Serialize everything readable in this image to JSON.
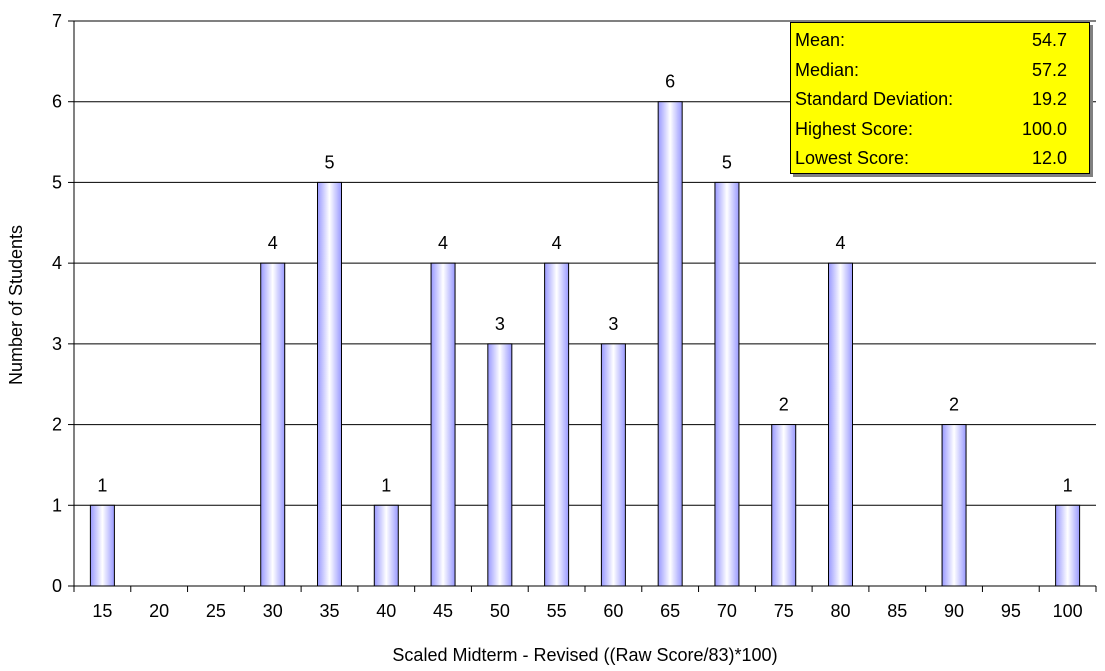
{
  "chart_data": {
    "type": "bar",
    "categories": [
      "15",
      "20",
      "25",
      "30",
      "35",
      "40",
      "45",
      "50",
      "55",
      "60",
      "65",
      "70",
      "75",
      "80",
      "85",
      "90",
      "95",
      "100"
    ],
    "values": [
      1,
      0,
      0,
      4,
      5,
      1,
      4,
      3,
      4,
      3,
      6,
      5,
      2,
      4,
      0,
      2,
      0,
      1
    ],
    "data_labels": [
      "1",
      "",
      "",
      "4",
      "5",
      "1",
      "4",
      "3",
      "4",
      "3",
      "6",
      "5",
      "2",
      "4",
      "",
      "2",
      "",
      "1"
    ],
    "xlabel": "Scaled Midterm - Revised ((Raw Score/83)*100)",
    "ylabel": "Number of Students",
    "ylim": [
      0,
      7
    ],
    "yticks": [
      "0",
      "1",
      "2",
      "3",
      "4",
      "5",
      "6",
      "7"
    ],
    "grid": true,
    "colors": {
      "bar_edge": "#9999ff",
      "bar_center": "#ffffff",
      "bar_outline": "#000000",
      "stats_bg": "#ffff00"
    }
  },
  "stats": [
    {
      "label": "Mean:",
      "value": "54.7"
    },
    {
      "label": "Median:",
      "value": "57.2"
    },
    {
      "label": "Standard Deviation:",
      "value": "19.2"
    },
    {
      "label": "Highest Score:",
      "value": "100.0"
    },
    {
      "label": "Lowest Score:",
      "value": "12.0"
    }
  ]
}
